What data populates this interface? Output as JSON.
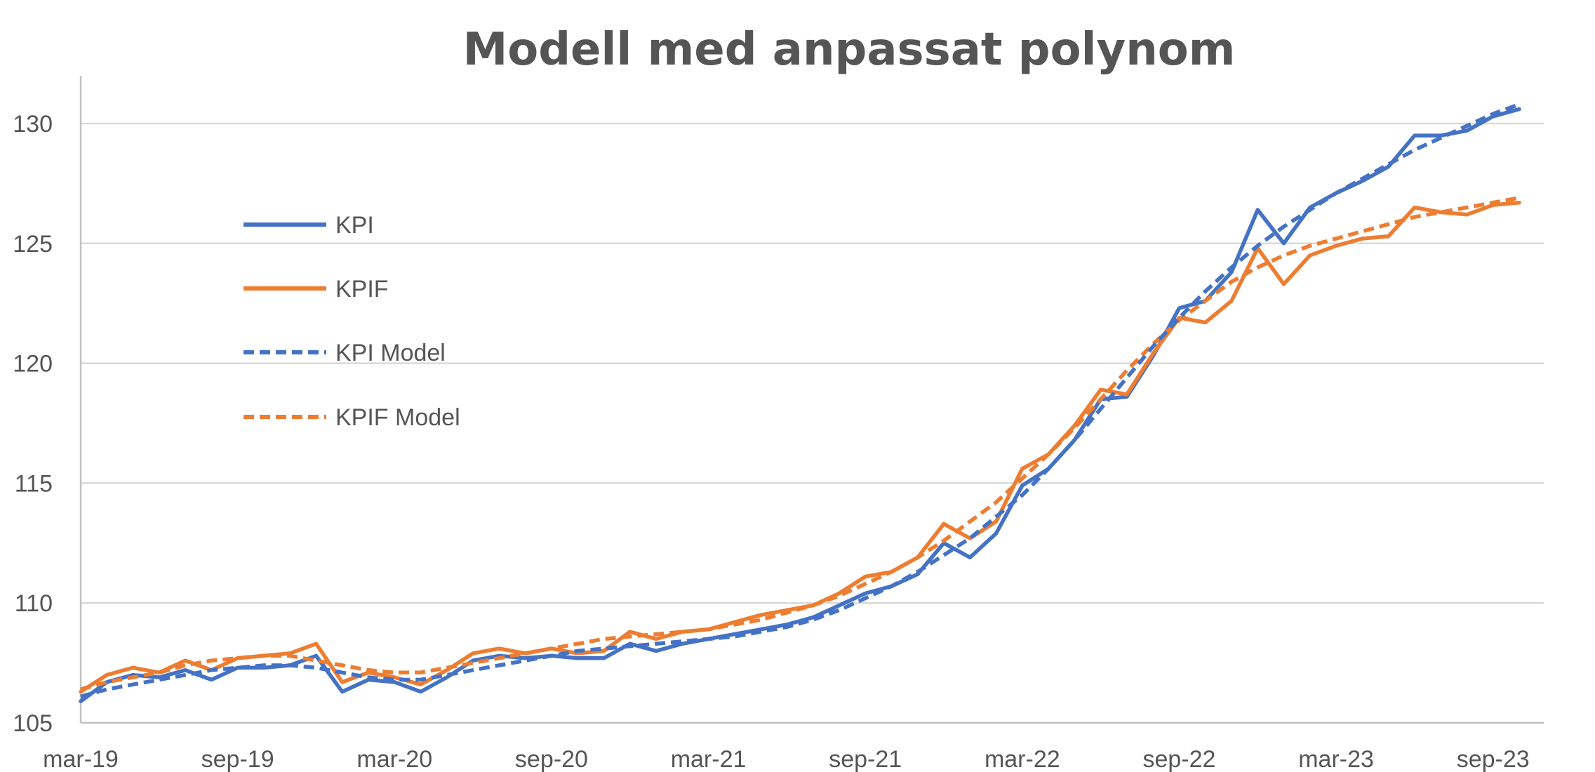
{
  "chart_data": {
    "type": "line",
    "title": "Modell med anpassat polynom",
    "xlabel": "",
    "ylabel": "",
    "ylim": [
      105,
      132
    ],
    "yticks": [
      105,
      110,
      115,
      120,
      125,
      130
    ],
    "xtick_labels": [
      "mar-19",
      "sep-19",
      "mar-20",
      "sep-20",
      "mar-21",
      "sep-21",
      "mar-22",
      "sep-22",
      "mar-23",
      "sep-23"
    ],
    "xtick_indices": [
      0,
      6,
      12,
      18,
      24,
      30,
      36,
      42,
      48,
      54
    ],
    "legend_position": "upper-left",
    "grid": "horizontal",
    "colors": {
      "kpi": "#4472c4",
      "kpif": "#ed7d31",
      "text": "#555555",
      "grid": "#d9d9d9",
      "axis": "#bfbfbf"
    },
    "series": [
      {
        "name": "KPI",
        "color": "#4472c4",
        "dashed": false,
        "values": [
          105.9,
          106.7,
          107.0,
          106.9,
          107.2,
          106.8,
          107.3,
          107.3,
          107.4,
          107.8,
          106.3,
          106.8,
          106.7,
          106.3,
          106.9,
          107.6,
          107.8,
          107.7,
          107.8,
          107.7,
          107.7,
          108.3,
          108.0,
          108.3,
          108.5,
          108.7,
          108.9,
          109.1,
          109.4,
          109.9,
          110.4,
          110.7,
          111.2,
          112.5,
          111.9,
          112.9,
          114.9,
          115.6,
          116.8,
          118.5,
          118.6,
          120.3,
          122.3,
          122.6,
          123.8,
          126.4,
          125.0,
          126.5,
          127.1,
          127.6,
          128.2,
          129.5,
          129.5,
          129.7,
          130.3,
          130.6
        ]
      },
      {
        "name": "KPIF",
        "color": "#ed7d31",
        "dashed": false,
        "values": [
          106.3,
          107.0,
          107.3,
          107.1,
          107.6,
          107.2,
          107.7,
          107.8,
          107.9,
          108.3,
          106.7,
          107.1,
          106.9,
          106.6,
          107.2,
          107.9,
          108.1,
          107.9,
          108.1,
          107.9,
          108.0,
          108.8,
          108.5,
          108.8,
          108.9,
          109.2,
          109.5,
          109.7,
          109.9,
          110.4,
          111.1,
          111.3,
          111.9,
          113.3,
          112.7,
          113.4,
          115.6,
          116.2,
          117.4,
          118.9,
          118.7,
          120.4,
          121.9,
          121.7,
          122.6,
          124.8,
          123.3,
          124.5,
          124.9,
          125.2,
          125.3,
          126.5,
          126.3,
          126.2,
          126.6,
          126.7
        ]
      },
      {
        "name": "KPI Model",
        "color": "#4472c4",
        "dashed": true,
        "values": [
          106.1,
          106.4,
          106.6,
          106.8,
          107.0,
          107.2,
          107.3,
          107.4,
          107.4,
          107.3,
          107.1,
          106.9,
          106.8,
          106.8,
          107.0,
          107.2,
          107.4,
          107.6,
          107.8,
          108.0,
          108.1,
          108.2,
          108.3,
          108.4,
          108.5,
          108.6,
          108.8,
          109.0,
          109.3,
          109.7,
          110.2,
          110.7,
          111.3,
          112.0,
          112.7,
          113.6,
          114.5,
          115.6,
          116.8,
          118.1,
          119.4,
          120.7,
          121.9,
          123.0,
          124.0,
          124.9,
          125.7,
          126.4,
          127.1,
          127.7,
          128.3,
          128.9,
          129.4,
          129.9,
          130.4,
          130.8
        ]
      },
      {
        "name": "KPIF Model",
        "color": "#ed7d31",
        "dashed": true,
        "values": [
          106.4,
          106.7,
          106.9,
          107.1,
          107.4,
          107.6,
          107.7,
          107.8,
          107.8,
          107.6,
          107.4,
          107.2,
          107.1,
          107.1,
          107.3,
          107.5,
          107.7,
          107.9,
          108.1,
          108.3,
          108.5,
          108.6,
          108.7,
          108.8,
          108.9,
          109.1,
          109.3,
          109.6,
          109.9,
          110.3,
          110.8,
          111.3,
          111.9,
          112.6,
          113.4,
          114.2,
          115.2,
          116.2,
          117.3,
          118.5,
          119.7,
          120.8,
          121.8,
          122.6,
          123.4,
          124.0,
          124.5,
          124.9,
          125.2,
          125.5,
          125.8,
          126.1,
          126.3,
          126.5,
          126.7,
          126.9
        ]
      }
    ]
  }
}
